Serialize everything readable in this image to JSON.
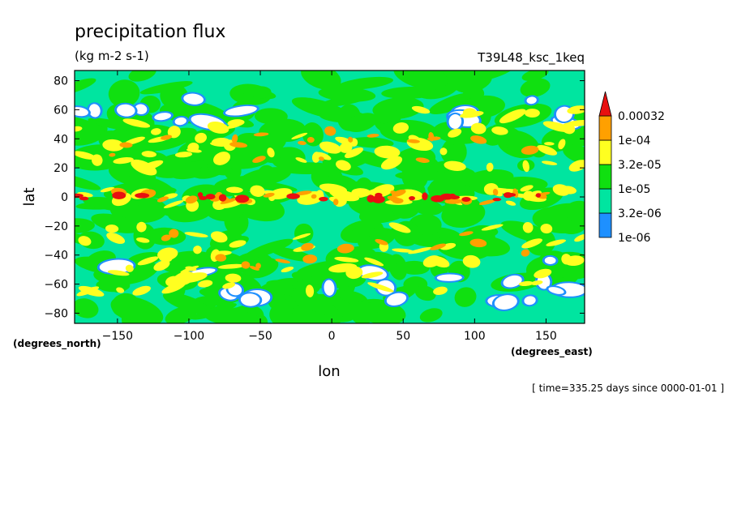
{
  "chart_data": {
    "type": "heatmap",
    "title": "precipitation flux",
    "subtitle": "(kg m-2 s-1)",
    "run_label": "T39L48_ksc_1keq",
    "xlabel": "lon",
    "ylabel": "lat",
    "x_unit": "(degrees_east)",
    "y_unit": "(degrees_north)",
    "footer": "[ time=335.25 days since 0000-01-01 ]",
    "xlim": [
      -180,
      177
    ],
    "ylim": [
      -87,
      87
    ],
    "xticks": [
      -150,
      -100,
      -50,
      0,
      50,
      100,
      150
    ],
    "yticks": [
      -80,
      -60,
      -40,
      -20,
      0,
      20,
      40,
      60,
      80
    ],
    "x_tick_labels": [
      "−150",
      "−100",
      "−50",
      "0",
      "50",
      "100",
      "150"
    ],
    "y_tick_labels": [
      "−80",
      "−60",
      "−40",
      "−20",
      "0",
      "20",
      "40",
      "60",
      "80"
    ],
    "grid": false,
    "legend_position": "right",
    "levels": [
      "1e-06",
      "3.2e-06",
      "1e-05",
      "3.2e-05",
      "1e-04",
      "0.00032"
    ],
    "level_colors": [
      "#ffffff",
      "#1e90ff",
      "#00e5a0",
      "#10e010",
      "#ffff20",
      "#ffa000",
      "#e81010"
    ],
    "background_color": "#00e5a0"
  }
}
